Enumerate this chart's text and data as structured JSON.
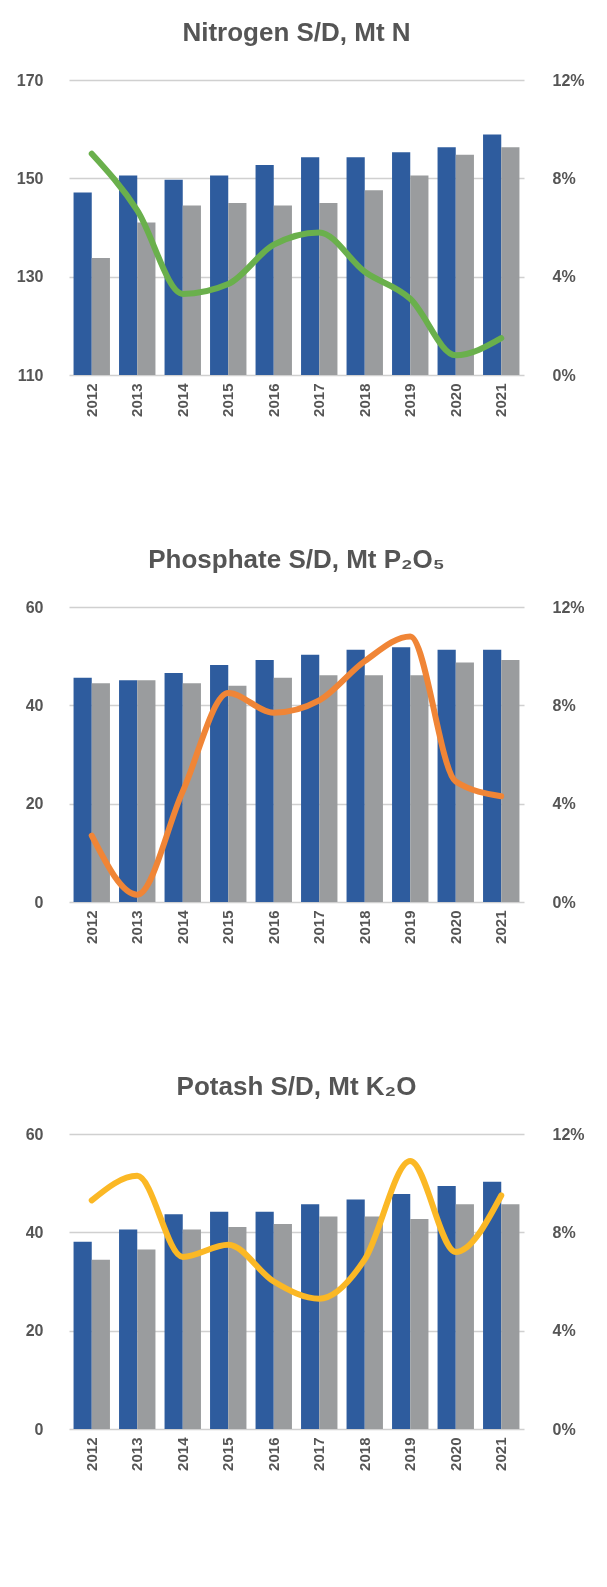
{
  "chart_data": [
    {
      "type": "bar",
      "title": "Nitrogen S/D, Mt N",
      "categories": [
        "2012",
        "2013",
        "2014",
        "2015",
        "2016",
        "2017",
        "2018",
        "2019",
        "2020",
        "2021"
      ],
      "series": [
        {
          "color": "#2e5c9e",
          "values": [
            147.1,
            150.6,
            149.7,
            150.6,
            152.7,
            154.3,
            154.3,
            155.3,
            156.3,
            158.9
          ]
        },
        {
          "color": "#9a9c9e",
          "values": [
            133.8,
            141.0,
            144.5,
            145.0,
            144.5,
            145.0,
            147.6,
            150.6,
            154.8,
            156.3
          ]
        },
        {
          "type": "line",
          "axis": "y2",
          "color": "#6ab04c",
          "values": [
            9.0,
            6.7,
            3.3,
            3.7,
            5.3,
            5.8,
            4.2,
            3.1,
            0.8,
            1.5
          ]
        }
      ],
      "ylim": [
        110,
        170
      ],
      "yticks": [
        110,
        130,
        150,
        170
      ],
      "y2lim": [
        0,
        12
      ],
      "y2ticks": [
        {
          "value": 0,
          "label": "0%"
        },
        {
          "value": 4,
          "label": "4%"
        },
        {
          "value": 8,
          "label": "8%"
        },
        {
          "value": 12,
          "label": "12%"
        }
      ],
      "grid": "y"
    },
    {
      "type": "bar",
      "title": "Phosphate S/D, Mt P₂O₅",
      "categories": [
        "2012",
        "2013",
        "2014",
        "2015",
        "2016",
        "2017",
        "2018",
        "2019",
        "2020",
        "2021"
      ],
      "series": [
        {
          "color": "#2e5c9e",
          "values": [
            45.6,
            45.1,
            46.6,
            48.2,
            49.2,
            50.3,
            51.3,
            51.8,
            51.3,
            51.3
          ]
        },
        {
          "color": "#9a9c9e",
          "values": [
            44.5,
            45.1,
            44.5,
            44.0,
            45.6,
            46.1,
            46.1,
            46.1,
            48.7,
            49.2
          ]
        },
        {
          "type": "line",
          "axis": "y2",
          "color": "#f08536",
          "values": [
            2.7,
            0.3,
            4.5,
            8.5,
            7.7,
            8.2,
            9.8,
            10.8,
            4.9,
            4.3
          ]
        }
      ],
      "ylim": [
        0,
        60
      ],
      "yticks": [
        0,
        20,
        40,
        60
      ],
      "y2lim": [
        0,
        12
      ],
      "y2ticks": [
        {
          "value": 0,
          "label": "0%"
        },
        {
          "value": 4,
          "label": "4%"
        },
        {
          "value": 8,
          "label": "8%"
        },
        {
          "value": 12,
          "label": "12%"
        }
      ],
      "grid": "y"
    },
    {
      "type": "bar",
      "title": "Potash S/D, Mt K₂O",
      "categories": [
        "2012",
        "2013",
        "2014",
        "2015",
        "2016",
        "2017",
        "2018",
        "2019",
        "2020",
        "2021"
      ],
      "series": [
        {
          "color": "#2e5c9e",
          "values": [
            38.1,
            40.6,
            43.7,
            44.2,
            44.2,
            45.7,
            46.7,
            47.8,
            49.4,
            50.3
          ]
        },
        {
          "color": "#9a9c9e",
          "values": [
            34.4,
            36.5,
            40.6,
            41.1,
            41.7,
            43.2,
            43.2,
            42.7,
            45.7,
            45.7
          ]
        },
        {
          "type": "line",
          "axis": "y2",
          "color": "#fbb825",
          "values": [
            9.3,
            10.3,
            7.0,
            7.5,
            6.0,
            5.3,
            6.9,
            10.9,
            7.2,
            9.5
          ]
        }
      ],
      "ylim": [
        0,
        60
      ],
      "yticks": [
        0,
        20,
        40,
        60
      ],
      "y2lim": [
        0,
        12
      ],
      "y2ticks": [
        {
          "value": 0,
          "label": "0%"
        },
        {
          "value": 4,
          "label": "4%"
        },
        {
          "value": 8,
          "label": "8%"
        },
        {
          "value": 12,
          "label": "12%"
        }
      ],
      "grid": "y"
    }
  ]
}
